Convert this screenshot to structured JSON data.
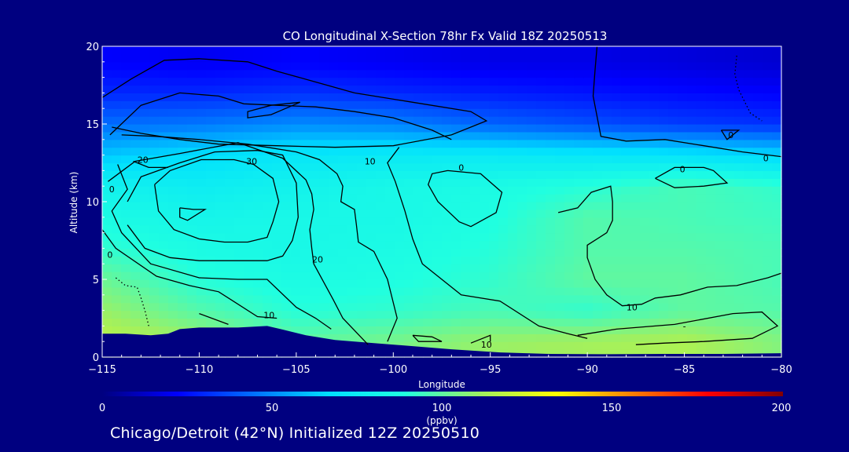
{
  "chart_data": {
    "type": "heatmap",
    "title": "CO Longitudinal X-Section 78hr  Fx Valid 18Z 20250513",
    "xlabel": "Longitude",
    "ylabel": "Altitude (km)",
    "xlim": [
      -115,
      -80
    ],
    "ylim": [
      0,
      20
    ],
    "x_ticks": [
      -115,
      -110,
      -105,
      -100,
      -95,
      -90,
      -85,
      -80
    ],
    "y_ticks": [
      0,
      5,
      10,
      15,
      20
    ],
    "colorbar": {
      "ticks": [
        0,
        50,
        100,
        150,
        200
      ],
      "unit": "(ppbv)",
      "range": [
        0,
        200
      ],
      "colors": [
        "#000080",
        "#0000ff",
        "#0070ff",
        "#00dfff",
        "#20ffe0",
        "#a0f060",
        "#ffff00",
        "#ff8000",
        "#ff0000",
        "#800000"
      ]
    },
    "co_grid": {
      "x": [
        -115,
        -110,
        -105,
        -100,
        -95,
        -90,
        -85,
        -80
      ],
      "y": [
        1,
        3,
        5,
        7,
        9,
        11,
        13,
        15,
        17,
        19
      ],
      "values": [
        [
          118,
          112,
          100,
          104,
          110,
          112,
          114,
          106
        ],
        [
          110,
          98,
          90,
          92,
          96,
          92,
          100,
          98
        ],
        [
          102,
          90,
          86,
          88,
          92,
          100,
          100,
          96
        ],
        [
          92,
          86,
          84,
          86,
          90,
          98,
          98,
          96
        ],
        [
          86,
          82,
          84,
          84,
          88,
          98,
          96,
          94
        ],
        [
          80,
          76,
          80,
          84,
          86,
          90,
          96,
          92
        ],
        [
          62,
          68,
          72,
          74,
          74,
          72,
          70,
          66
        ],
        [
          44,
          46,
          50,
          48,
          42,
          38,
          34,
          32
        ],
        [
          30,
          30,
          32,
          30,
          28,
          26,
          24,
          22
        ],
        [
          22,
          20,
          22,
          20,
          18,
          18,
          16,
          14
        ]
      ]
    },
    "contour_labels": [
      {
        "text": "0",
        "lon": -114.5,
        "alt": 10.8
      },
      {
        "text": "20",
        "lon": -112.9,
        "alt": 12.7
      },
      {
        "text": "30",
        "lon": -107.3,
        "alt": 12.6
      },
      {
        "text": "10",
        "lon": -101.2,
        "alt": 12.6
      },
      {
        "text": "0",
        "lon": -96.5,
        "alt": 12.2
      },
      {
        "text": "0",
        "lon": -85.1,
        "alt": 12.1
      },
      {
        "text": "0",
        "lon": -82.6,
        "alt": 14.3
      },
      {
        "text": "0",
        "lon": -80.8,
        "alt": 12.8
      },
      {
        "text": "0",
        "lon": -114.6,
        "alt": 6.6
      },
      {
        "text": "20",
        "lon": -103.9,
        "alt": 6.3
      },
      {
        "text": "10",
        "lon": -106.4,
        "alt": 2.7
      },
      {
        "text": "10",
        "lon": -95.2,
        "alt": 0.8
      },
      {
        "text": "10",
        "lon": -87.7,
        "alt": 3.2
      },
      {
        "text": "-",
        "lon": -85.0,
        "alt": 2.0
      }
    ],
    "footer": "Chicago/Detroit (42°N) Initialized 12Z 20250510"
  }
}
